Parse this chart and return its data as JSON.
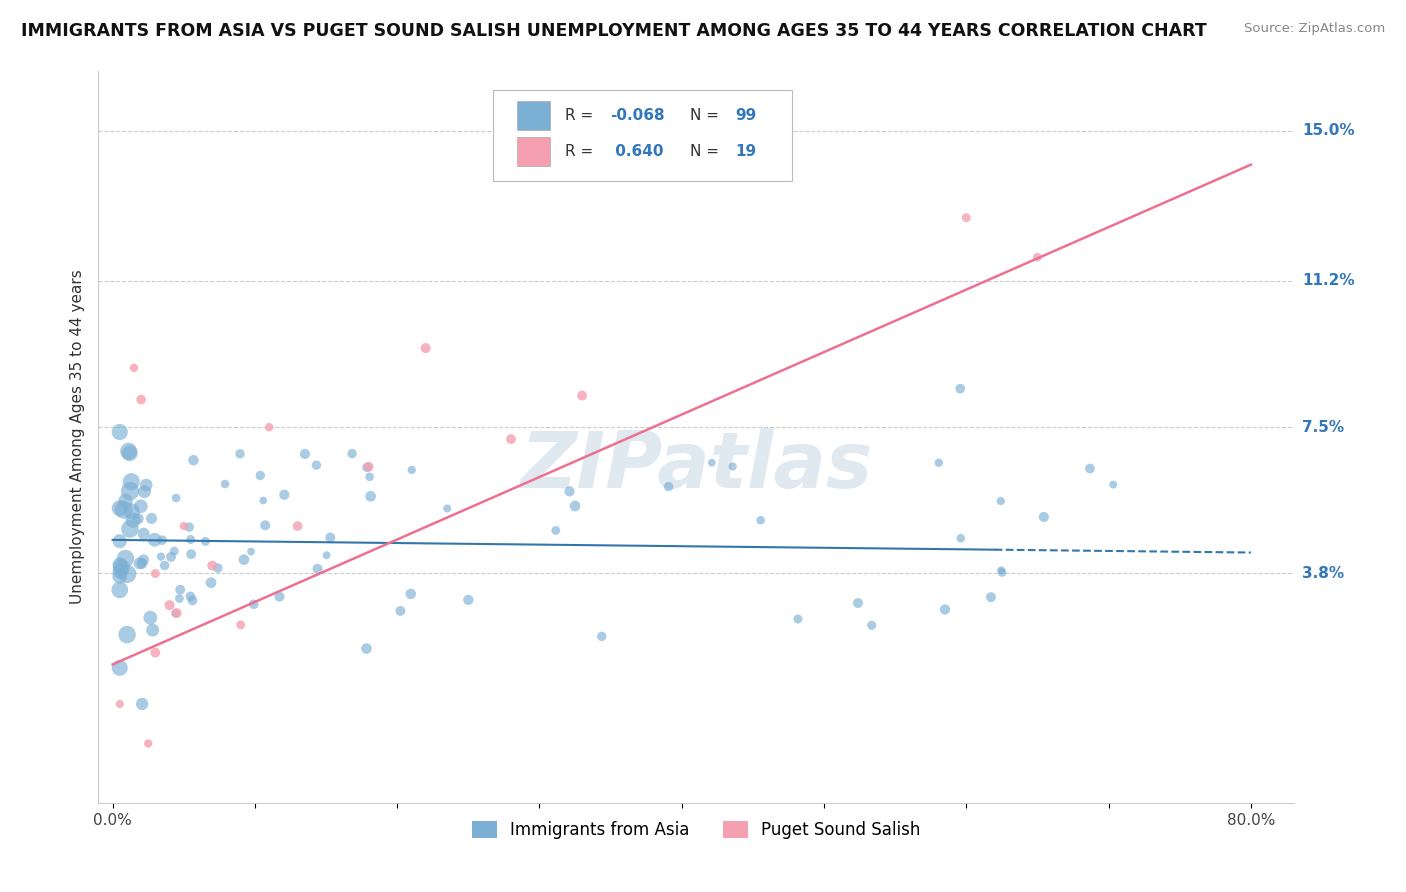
{
  "title": "IMMIGRANTS FROM ASIA VS PUGET SOUND SALISH UNEMPLOYMENT AMONG AGES 35 TO 44 YEARS CORRELATION CHART",
  "source": "Source: ZipAtlas.com",
  "ylabel": "Unemployment Among Ages 35 to 44 years",
  "xlim": [
    -0.01,
    0.83
  ],
  "ylim": [
    -0.02,
    0.165
  ],
  "xticks": [
    0.0,
    0.1,
    0.2,
    0.3,
    0.4,
    0.5,
    0.6,
    0.7,
    0.8
  ],
  "xticklabels": [
    "0.0%",
    "",
    "",
    "",
    "",
    "",
    "",
    "",
    "80.0%"
  ],
  "ytick_positions": [
    0.038,
    0.075,
    0.112,
    0.15
  ],
  "ytick_labels": [
    "3.8%",
    "7.5%",
    "11.2%",
    "15.0%"
  ],
  "blue_color": "#7BAFD4",
  "pink_color": "#F4A0B0",
  "trendline_blue_color": "#3377AA",
  "trendline_pink_color": "#EE7090",
  "watermark_color": "#E0E8F0",
  "background_color": "#FFFFFF",
  "grid_color": "#CCCCCC",
  "blue_trendline_solid_end": 0.62,
  "blue_trendline_slope": -0.004,
  "blue_trendline_intercept": 0.0465,
  "pink_trendline_slope": 0.158,
  "pink_trendline_intercept": 0.015
}
